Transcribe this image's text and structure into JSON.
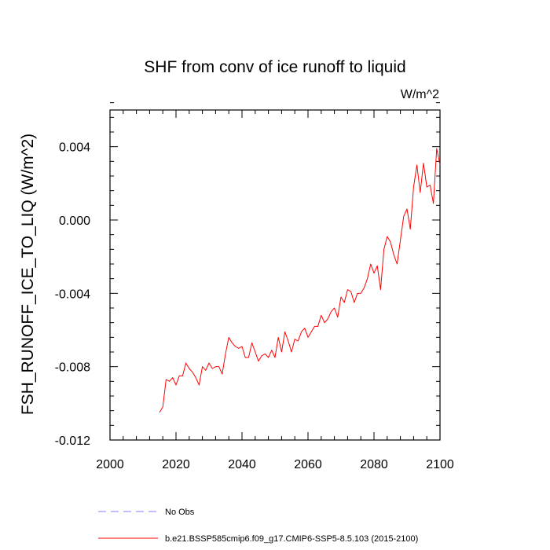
{
  "chart_data": {
    "type": "line",
    "title": "SHF from conv of ice runoff to liquid",
    "units": "W/m^2",
    "ylabel": "FSH_RUNOFF_ICE_TO_LIQ  (W/m^2)",
    "xlabel": "",
    "xlim": [
      2000,
      2100
    ],
    "ylim": [
      -0.012,
      0.006
    ],
    "x_ticks": [
      2000,
      2020,
      2040,
      2060,
      2080,
      2100
    ],
    "x_tick_labels": [
      "2000",
      "2020",
      "2040",
      "2060",
      "2080",
      "2100"
    ],
    "y_ticks": [
      -0.012,
      -0.008,
      -0.004,
      0.0,
      0.004
    ],
    "y_tick_labels": [
      "-0.012",
      "-0.008",
      "-0.004",
      "0.000",
      "0.004"
    ],
    "series": [
      {
        "name": "b.e21.BSSP585cmip6.f09_g17.CMIP6-SSP5-8.5.103 (2015-2100)",
        "color": "#ff0000",
        "style": "solid",
        "x": [
          2015,
          2016,
          2017,
          2018,
          2019,
          2020,
          2021,
          2022,
          2023,
          2024,
          2025,
          2026,
          2027,
          2028,
          2029,
          2030,
          2031,
          2032,
          2033,
          2034,
          2035,
          2036,
          2037,
          2038,
          2039,
          2040,
          2041,
          2042,
          2043,
          2044,
          2045,
          2046,
          2047,
          2048,
          2049,
          2050,
          2051,
          2052,
          2053,
          2054,
          2055,
          2056,
          2057,
          2058,
          2059,
          2060,
          2061,
          2062,
          2063,
          2064,
          2065,
          2066,
          2067,
          2068,
          2069,
          2070,
          2071,
          2072,
          2073,
          2074,
          2075,
          2076,
          2077,
          2078,
          2079,
          2080,
          2081,
          2082,
          2083,
          2084,
          2085,
          2086,
          2087,
          2088,
          2089,
          2090,
          2091,
          2092,
          2093,
          2094,
          2095,
          2096,
          2097,
          2098,
          2099,
          2100
        ],
        "y": [
          -0.0105,
          -0.0102,
          -0.0087,
          -0.0088,
          -0.0086,
          -0.009,
          -0.0085,
          -0.0085,
          -0.0078,
          -0.0081,
          -0.0083,
          -0.0086,
          -0.009,
          -0.008,
          -0.0082,
          -0.0078,
          -0.0081,
          -0.008,
          -0.008,
          -0.0084,
          -0.0073,
          -0.0064,
          -0.0067,
          -0.0069,
          -0.007,
          -0.0069,
          -0.0075,
          -0.0075,
          -0.0067,
          -0.0072,
          -0.0077,
          -0.0074,
          -0.0073,
          -0.0075,
          -0.0071,
          -0.0075,
          -0.0064,
          -0.0072,
          -0.0061,
          -0.0066,
          -0.0072,
          -0.0065,
          -0.0066,
          -0.0061,
          -0.0059,
          -0.0064,
          -0.0061,
          -0.0058,
          -0.0058,
          -0.0052,
          -0.0056,
          -0.0054,
          -0.005,
          -0.0048,
          -0.0053,
          -0.0042,
          -0.0045,
          -0.0038,
          -0.0039,
          -0.0045,
          -0.004,
          -0.004,
          -0.0037,
          -0.0032,
          -0.0024,
          -0.0029,
          -0.0025,
          -0.0038,
          -0.0016,
          -0.0009,
          -0.0012,
          -0.0019,
          -0.0024,
          -0.0011,
          0.0002,
          0.0006,
          -0.0005,
          0.0018,
          0.003,
          0.0015,
          0.0031,
          0.0018,
          0.0019,
          0.0009,
          0.0039,
          0.003
        ]
      }
    ],
    "legend": [
      {
        "label": "No Obs",
        "color": "#7f7fff",
        "style": "dashed"
      },
      {
        "label": "b.e21.BSSP585cmip6.f09_g17.CMIP6-SSP5-8.5.103 (2015-2100)",
        "color": "#ff0000",
        "style": "solid"
      }
    ],
    "legend_placement": "bottom-left",
    "grid": false
  }
}
